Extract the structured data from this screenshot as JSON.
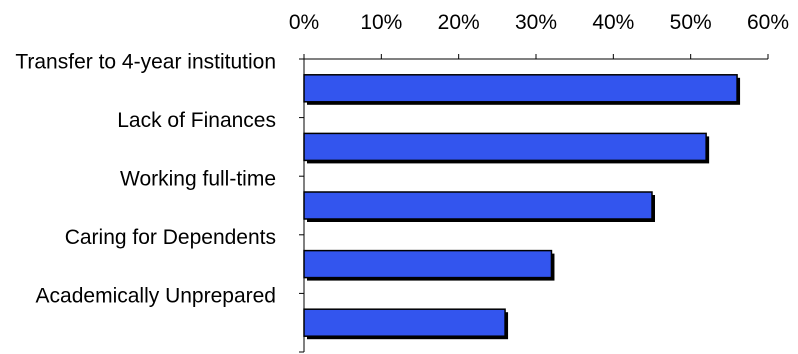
{
  "chart_data": {
    "type": "bar",
    "orientation": "horizontal",
    "title": "",
    "xlabel": "",
    "ylabel": "",
    "categories": [
      "Transfer to 4-year institution",
      "Lack of Finances",
      "Working full-time",
      "Caring for Dependents",
      "Academically Unprepared"
    ],
    "values": [
      0.56,
      0.52,
      0.45,
      0.32,
      0.26
    ],
    "xlim": [
      0,
      0.6
    ],
    "x_ticks": [
      0,
      0.1,
      0.2,
      0.3,
      0.4,
      0.5,
      0.6
    ],
    "x_tick_labels": [
      "0%",
      "10%",
      "20%",
      "30%",
      "40%",
      "50%",
      "60%"
    ],
    "x_axis_position": "top",
    "grid": false,
    "legend": "none",
    "bar_color": "#3355ee",
    "bar_outline_color": "#000000",
    "bar_shadow_color": "#000000"
  }
}
